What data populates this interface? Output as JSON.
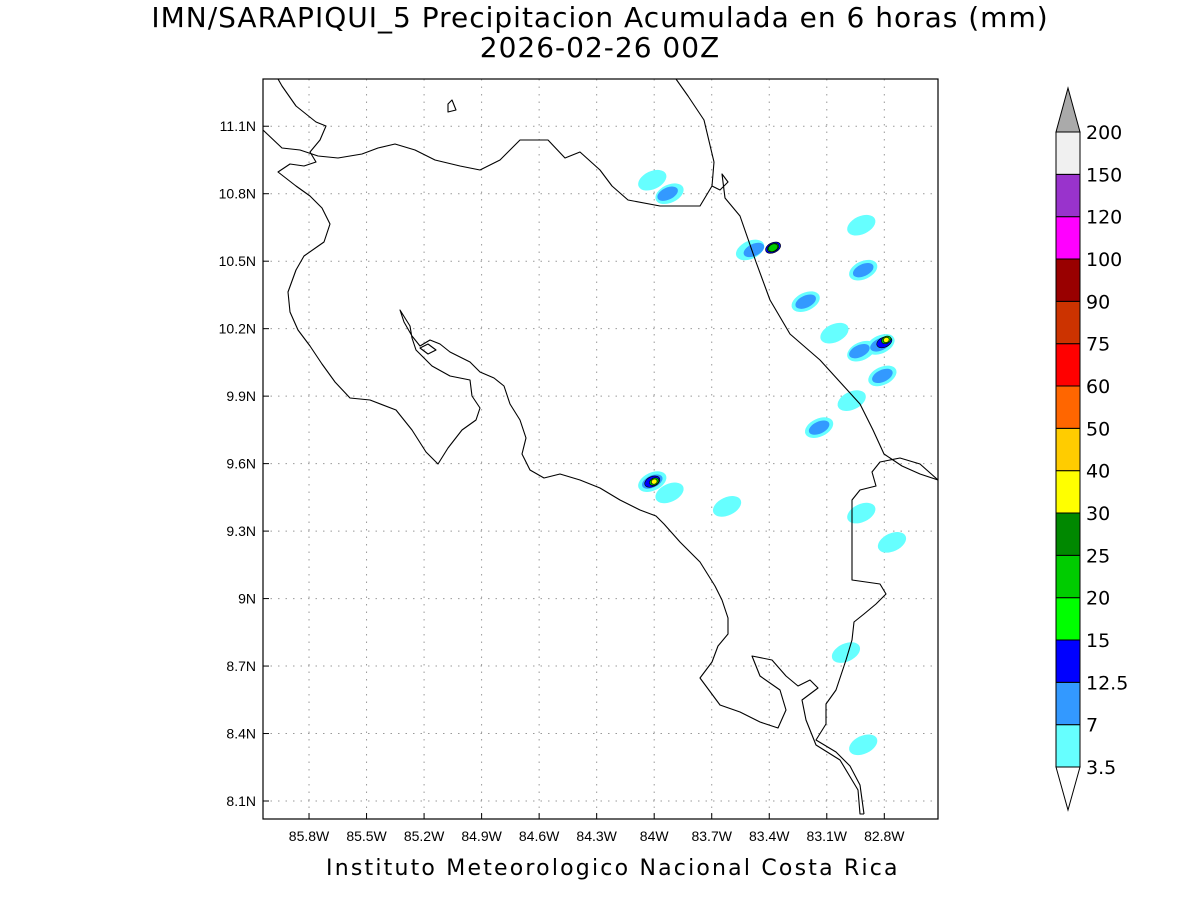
{
  "title": {
    "line1": "IMN/SARAPIQUI_5 Precipitacion Acumulada en 6 horas (mm)",
    "line2": "2026-02-26 00Z"
  },
  "footer": "Instituto Meteorologico Nacional Costa Rica",
  "map": {
    "lon_range": [
      -86.04,
      -82.52
    ],
    "lat_range": [
      8.02,
      11.31
    ],
    "lat_ticks": [
      {
        "value": 11.1,
        "label": "11.1N"
      },
      {
        "value": 10.8,
        "label": "10.8N"
      },
      {
        "value": 10.5,
        "label": "10.5N"
      },
      {
        "value": 10.2,
        "label": "10.2N"
      },
      {
        "value": 9.9,
        "label": "9.9N"
      },
      {
        "value": 9.6,
        "label": "9.6N"
      },
      {
        "value": 9.3,
        "label": "9.3N"
      },
      {
        "value": 9.0,
        "label": "9N"
      },
      {
        "value": 8.7,
        "label": "8.7N"
      },
      {
        "value": 8.4,
        "label": "8.4N"
      },
      {
        "value": 8.1,
        "label": "8.1N"
      }
    ],
    "lon_ticks": [
      {
        "value": -85.8,
        "label": "85.8W"
      },
      {
        "value": -85.5,
        "label": "85.5W"
      },
      {
        "value": -85.2,
        "label": "85.2W"
      },
      {
        "value": -84.9,
        "label": "84.9W"
      },
      {
        "value": -84.6,
        "label": "84.6W"
      },
      {
        "value": -84.3,
        "label": "84.3W"
      },
      {
        "value": -84.0,
        "label": "84W"
      },
      {
        "value": -83.7,
        "label": "83.7W"
      },
      {
        "value": -83.4,
        "label": "83.4W"
      },
      {
        "value": -83.1,
        "label": "83.1W"
      },
      {
        "value": -82.8,
        "label": "82.8W"
      }
    ],
    "grid": "dotted"
  },
  "colorbar": {
    "colors": [
      "#ffffff",
      "#66ffff",
      "#3399ff",
      "#0000ff",
      "#00ff00",
      "#00cc00",
      "#008800",
      "#ffff00",
      "#ffcc00",
      "#ff6600",
      "#ff0000",
      "#cc3300",
      "#990000",
      "#ff00ff",
      "#9933cc",
      "#f0f0f0",
      "#aaaaaa"
    ],
    "labels": [
      "3.5",
      "7",
      "12.5",
      "15",
      "20",
      "25",
      "30",
      "40",
      "50",
      "60",
      "75",
      "90",
      "100",
      "120",
      "150",
      "200"
    ]
  },
  "precip_cells": [
    {
      "lon": -84.01,
      "lat": 10.86,
      "level": 1
    },
    {
      "lon": -83.92,
      "lat": 10.8,
      "level": 1
    },
    {
      "lon": -83.93,
      "lat": 10.8,
      "level": 2
    },
    {
      "lon": -83.5,
      "lat": 10.55,
      "level": 1
    },
    {
      "lon": -83.48,
      "lat": 10.55,
      "level": 2
    },
    {
      "lon": -83.38,
      "lat": 10.56,
      "level": 3
    },
    {
      "lon": -83.38,
      "lat": 10.56,
      "level": 4
    },
    {
      "lon": -83.38,
      "lat": 10.56,
      "level": 5
    },
    {
      "lon": -82.92,
      "lat": 10.66,
      "level": 1
    },
    {
      "lon": -82.91,
      "lat": 10.46,
      "level": 1
    },
    {
      "lon": -82.91,
      "lat": 10.46,
      "level": 2
    },
    {
      "lon": -83.21,
      "lat": 10.32,
      "level": 1
    },
    {
      "lon": -83.21,
      "lat": 10.32,
      "level": 2
    },
    {
      "lon": -83.06,
      "lat": 10.18,
      "level": 1
    },
    {
      "lon": -82.82,
      "lat": 10.13,
      "level": 1
    },
    {
      "lon": -82.82,
      "lat": 10.13,
      "level": 2
    },
    {
      "lon": -82.8,
      "lat": 10.14,
      "level": 3
    },
    {
      "lon": -82.79,
      "lat": 10.15,
      "level": 5
    },
    {
      "lon": -82.79,
      "lat": 10.15,
      "level": 7
    },
    {
      "lon": -82.92,
      "lat": 10.1,
      "level": 1
    },
    {
      "lon": -82.93,
      "lat": 10.1,
      "level": 2
    },
    {
      "lon": -82.81,
      "lat": 9.99,
      "level": 1
    },
    {
      "lon": -82.81,
      "lat": 9.99,
      "level": 2
    },
    {
      "lon": -82.97,
      "lat": 9.88,
      "level": 1
    },
    {
      "lon": -83.14,
      "lat": 9.76,
      "level": 1
    },
    {
      "lon": -83.14,
      "lat": 9.76,
      "level": 2
    },
    {
      "lon": -84.01,
      "lat": 9.52,
      "level": 1
    },
    {
      "lon": -84.01,
      "lat": 9.52,
      "level": 2
    },
    {
      "lon": -84.01,
      "lat": 9.52,
      "level": 3
    },
    {
      "lon": -84.0,
      "lat": 9.52,
      "level": 5
    },
    {
      "lon": -84.0,
      "lat": 9.52,
      "level": 7
    },
    {
      "lon": -83.92,
      "lat": 9.47,
      "level": 1
    },
    {
      "lon": -82.92,
      "lat": 9.38,
      "level": 1
    },
    {
      "lon": -82.76,
      "lat": 9.25,
      "level": 1
    },
    {
      "lon": -83.62,
      "lat": 9.41,
      "level": 1
    },
    {
      "lon": -83.0,
      "lat": 8.76,
      "level": 1
    },
    {
      "lon": -82.91,
      "lat": 8.35,
      "level": 1
    }
  ]
}
